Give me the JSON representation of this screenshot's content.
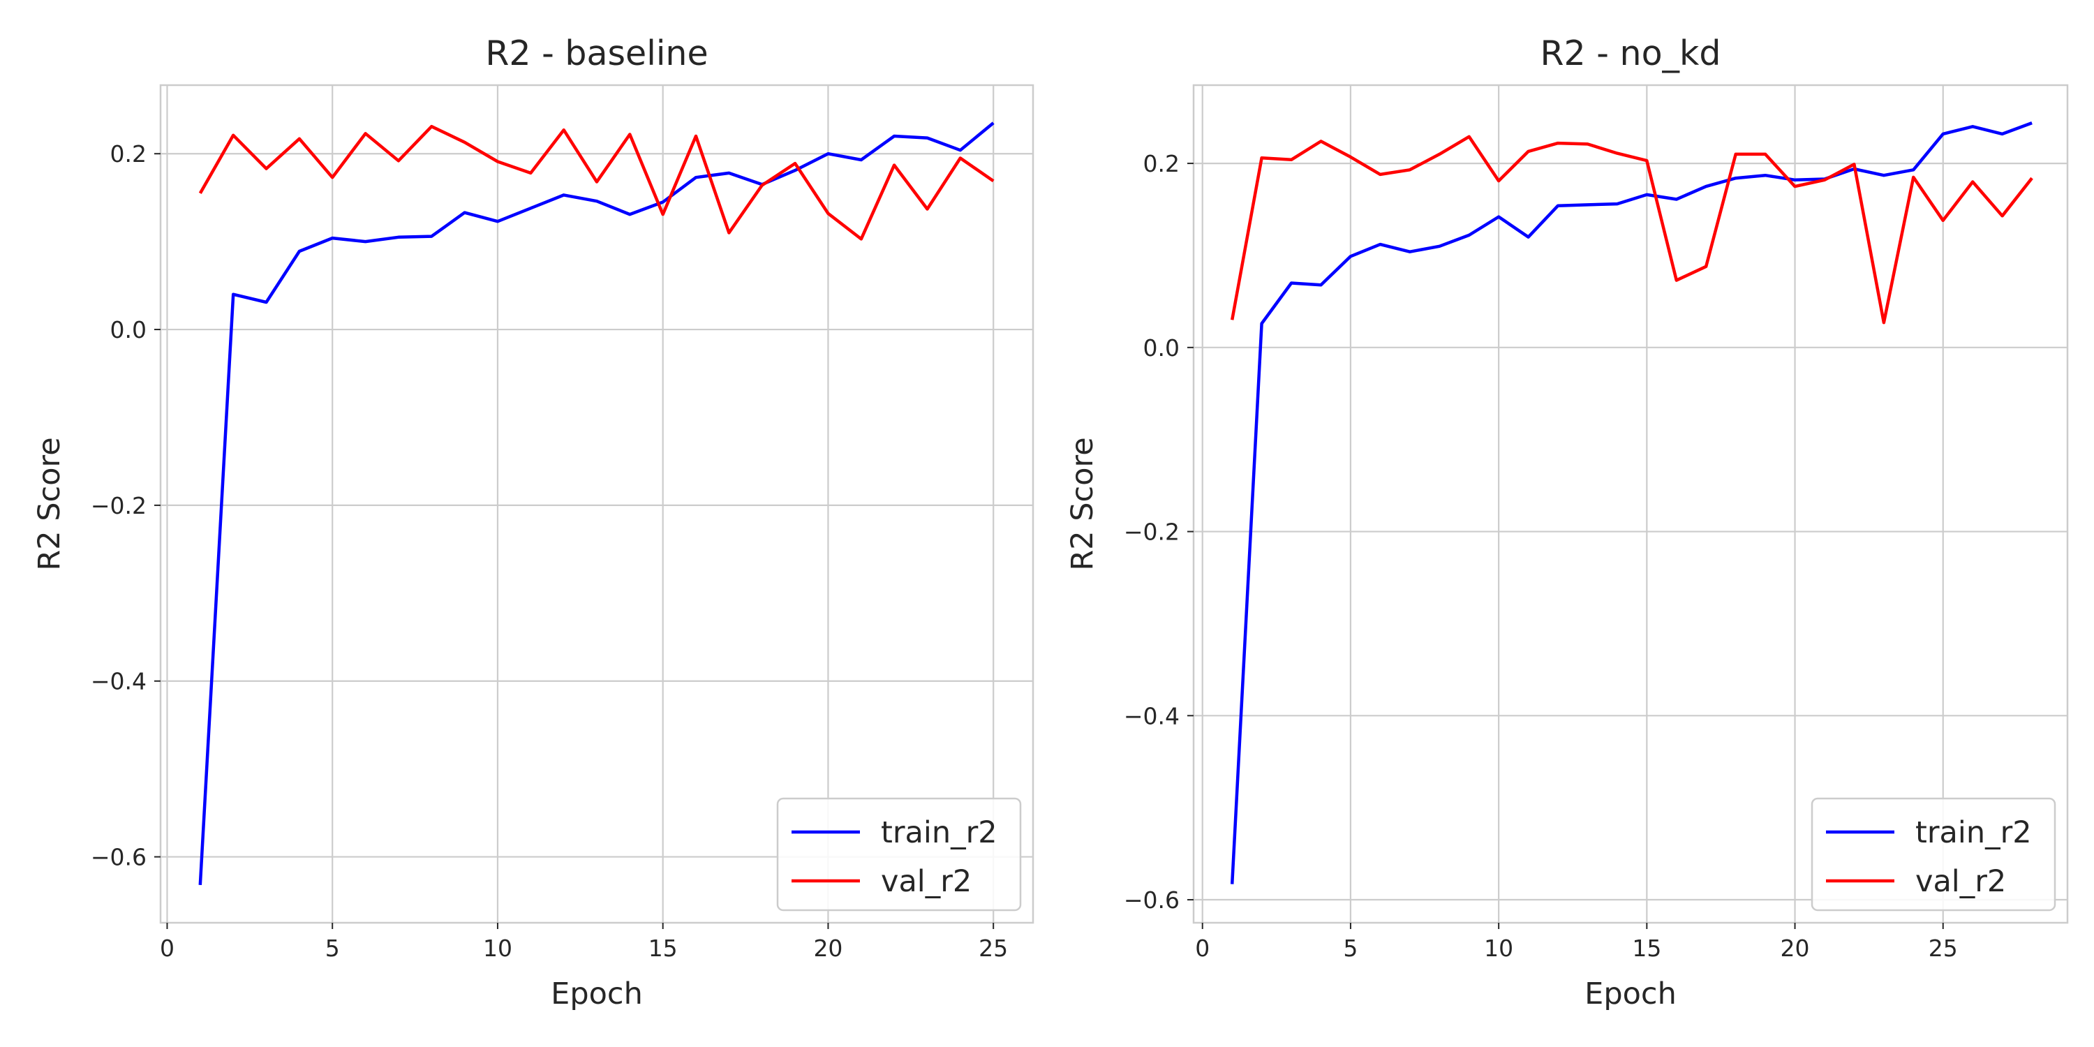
{
  "chart_data": [
    {
      "type": "line",
      "title": "R2 - baseline",
      "xlabel": "Epoch",
      "ylabel": "R2 Score",
      "xlim": [
        -0.2,
        26.2
      ],
      "ylim": [
        -0.675,
        0.278
      ],
      "xticks": [
        0,
        5,
        10,
        15,
        20,
        25
      ],
      "yticks": [
        -0.6,
        -0.4,
        -0.2,
        0.0,
        0.2
      ],
      "xtick_labels": [
        "0",
        "5",
        "10",
        "15",
        "20",
        "25"
      ],
      "ytick_labels": [
        "−0.6",
        "−0.4",
        "−0.2",
        "0.0",
        "0.2"
      ],
      "grid": true,
      "legend_position": "lower right",
      "series": [
        {
          "name": "train_r2",
          "color": "#0000ff",
          "x": [
            1,
            2,
            3,
            4,
            5,
            6,
            7,
            8,
            9,
            10,
            11,
            12,
            13,
            14,
            15,
            16,
            17,
            18,
            19,
            20,
            21,
            22,
            23,
            24,
            25
          ],
          "y": [
            -0.632,
            0.04,
            0.031,
            0.089,
            0.104,
            0.1,
            0.105,
            0.106,
            0.133,
            0.123,
            0.138,
            0.153,
            0.146,
            0.131,
            0.145,
            0.173,
            0.178,
            0.165,
            0.181,
            0.2,
            0.193,
            0.22,
            0.218,
            0.204,
            0.235
          ]
        },
        {
          "name": "val_r2",
          "color": "#ff0000",
          "x": [
            1,
            2,
            3,
            4,
            5,
            6,
            7,
            8,
            9,
            10,
            11,
            12,
            13,
            14,
            15,
            16,
            17,
            18,
            19,
            20,
            21,
            22,
            23,
            24,
            25
          ],
          "y": [
            0.155,
            0.221,
            0.183,
            0.217,
            0.173,
            0.223,
            0.192,
            0.231,
            0.213,
            0.191,
            0.178,
            0.227,
            0.168,
            0.222,
            0.131,
            0.22,
            0.11,
            0.164,
            0.189,
            0.132,
            0.103,
            0.187,
            0.137,
            0.195,
            0.169
          ]
        }
      ]
    },
    {
      "type": "line",
      "title": "R2 - no_kd",
      "xlabel": "Epoch",
      "ylabel": "R2 Score",
      "xlim": [
        -0.3,
        29.2
      ],
      "ylim": [
        -0.625,
        0.285
      ],
      "xticks": [
        0,
        5,
        10,
        15,
        20,
        25
      ],
      "yticks": [
        -0.6,
        -0.4,
        -0.2,
        0.0,
        0.2
      ],
      "xtick_labels": [
        "0",
        "5",
        "10",
        "15",
        "20",
        "25"
      ],
      "ytick_labels": [
        "−0.6",
        "−0.4",
        "−0.2",
        "0.0",
        "0.2"
      ],
      "grid": true,
      "legend_position": "lower right",
      "series": [
        {
          "name": "train_r2",
          "color": "#0000ff",
          "x": [
            1,
            2,
            3,
            4,
            5,
            6,
            7,
            8,
            9,
            10,
            11,
            12,
            13,
            14,
            15,
            16,
            17,
            18,
            19,
            20,
            21,
            22,
            23,
            24,
            25,
            26,
            27,
            28
          ],
          "y": [
            -0.583,
            0.026,
            0.07,
            0.068,
            0.099,
            0.112,
            0.104,
            0.11,
            0.122,
            0.142,
            0.12,
            0.154,
            0.155,
            0.156,
            0.166,
            0.161,
            0.175,
            0.184,
            0.187,
            0.182,
            0.183,
            0.194,
            0.187,
            0.193,
            0.232,
            0.24,
            0.232,
            0.244
          ]
        },
        {
          "name": "val_r2",
          "color": "#ff0000",
          "x": [
            1,
            2,
            3,
            4,
            5,
            6,
            7,
            8,
            9,
            10,
            11,
            12,
            13,
            14,
            15,
            16,
            17,
            18,
            19,
            20,
            21,
            22,
            23,
            24,
            25,
            26,
            27,
            28
          ],
          "y": [
            0.03,
            0.206,
            0.204,
            0.224,
            0.207,
            0.188,
            0.193,
            0.21,
            0.229,
            0.181,
            0.213,
            0.222,
            0.221,
            0.211,
            0.203,
            0.073,
            0.088,
            0.21,
            0.21,
            0.175,
            0.182,
            0.199,
            0.027,
            0.185,
            0.138,
            0.18,
            0.143,
            0.184
          ]
        }
      ]
    }
  ]
}
